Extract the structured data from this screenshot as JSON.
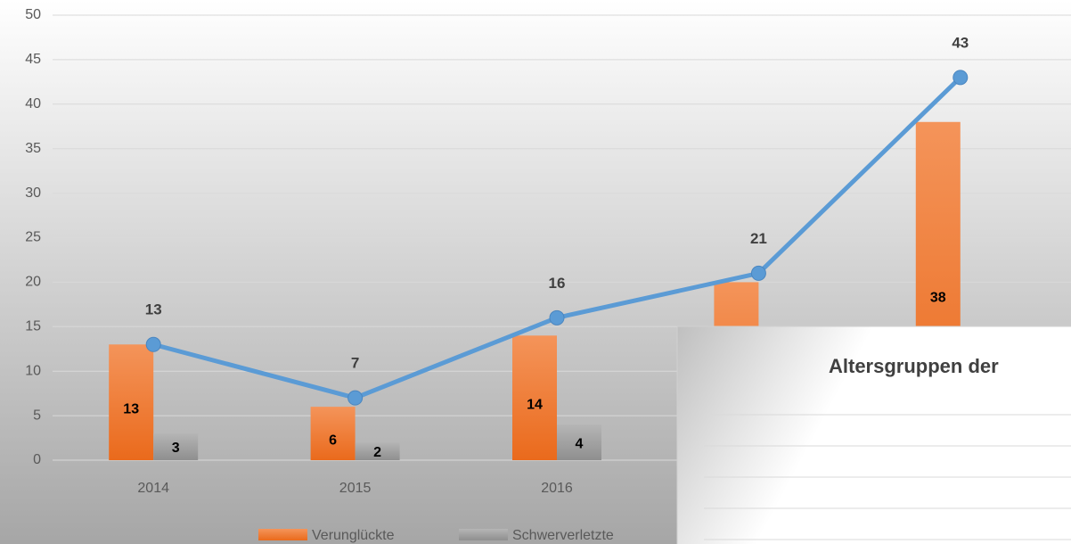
{
  "chart_data": {
    "type": "bar_line",
    "categories": [
      "2014",
      "2015",
      "2016",
      null,
      null
    ],
    "series": [
      {
        "name": "Verunglückte",
        "color": "#ed7d31",
        "kind": "bar",
        "values": [
          13,
          6,
          14,
          20,
          38
        ]
      },
      {
        "name": "Schwerverletzte",
        "color": "#a5a5a5",
        "kind": "bar",
        "values": [
          3,
          2,
          4,
          null,
          null
        ]
      },
      {
        "color": "#5b9bd5",
        "kind": "line",
        "values": [
          13,
          7,
          16,
          21,
          43
        ]
      }
    ],
    "ylim": [
      0,
      50
    ],
    "yticks": [
      0,
      5,
      10,
      15,
      20,
      25,
      30,
      35,
      40,
      45,
      50
    ],
    "grid": true,
    "legend": "bottom"
  },
  "panel": {
    "title": "Altersgruppen der"
  }
}
